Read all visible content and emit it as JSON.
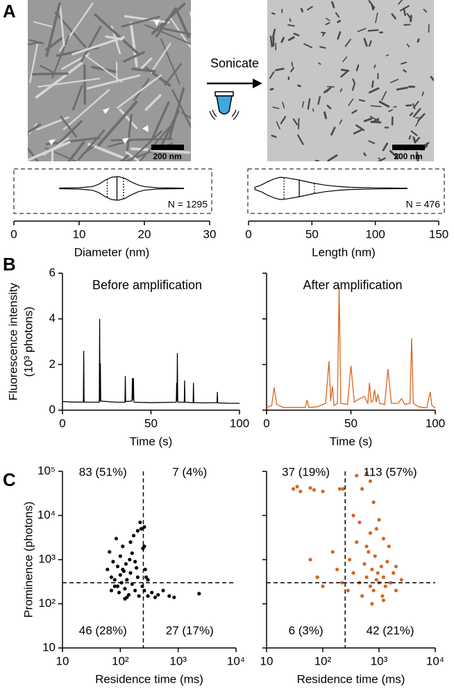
{
  "figure": {
    "panel_labels": [
      "A",
      "B",
      "C"
    ],
    "arrow_label": "Sonicate",
    "scale_bars": [
      "200 nm",
      "200 nm"
    ]
  },
  "chart_data": [
    {
      "type": "violin",
      "xlabel": "Diameter (nm)",
      "annotation": "N = 1295",
      "xlim": [
        0,
        30
      ],
      "xticks": [
        0,
        10,
        20,
        30
      ],
      "range": [
        7,
        26
      ],
      "quartiles": [
        14.3,
        15.8,
        16.8
      ],
      "density": {
        "x": [
          7,
          10,
          12,
          13,
          14,
          15,
          16,
          17,
          18,
          19,
          20,
          22,
          26
        ],
        "width": [
          0.03,
          0.06,
          0.15,
          0.35,
          0.7,
          0.95,
          1,
          0.85,
          0.55,
          0.3,
          0.15,
          0.05,
          0.02
        ]
      }
    },
    {
      "type": "violin",
      "xlabel": "Length (nm)",
      "annotation": "N = 476",
      "xlim": [
        0,
        150
      ],
      "xticks": [
        0,
        50,
        100,
        150
      ],
      "range": [
        5,
        125
      ],
      "quartiles": [
        28,
        40,
        52
      ],
      "density": {
        "x": [
          5,
          10,
          15,
          20,
          25,
          30,
          40,
          50,
          60,
          70,
          80,
          100,
          125
        ],
        "width": [
          0.1,
          0.3,
          0.6,
          0.85,
          1,
          0.95,
          0.75,
          0.5,
          0.3,
          0.18,
          0.1,
          0.05,
          0.02
        ]
      }
    },
    {
      "type": "line",
      "title": "Before amplification",
      "xlabel": "Time (s)",
      "ylabel": [
        "Fluorescence intensity",
        "(10³ photons)"
      ],
      "xlim": [
        0,
        100
      ],
      "xticks": [
        0,
        50,
        100
      ],
      "ylim": [
        0,
        6
      ],
      "yticks": [
        0,
        2,
        4,
        6
      ],
      "show_ytick_labels": true,
      "color": "#000000",
      "x": [
        0,
        5,
        11.8,
        12,
        12.2,
        20.8,
        21,
        21.2,
        21.4,
        21.6,
        30,
        35.3,
        35.5,
        35.7,
        39.3,
        39.5,
        39.7,
        40.1,
        40.3,
        40.5,
        50,
        64.3,
        64.5,
        64.7,
        64.9,
        65.1,
        65.3,
        68.8,
        69,
        69.2,
        73.8,
        74,
        74.2,
        80,
        87.3,
        87.5,
        87.7,
        95,
        100
      ],
      "values": [
        0.38,
        0.36,
        0.35,
        2.6,
        0.35,
        0.35,
        4.0,
        0.4,
        2.05,
        0.4,
        0.35,
        0.35,
        1.5,
        0.38,
        0.4,
        1.4,
        0.45,
        1.4,
        0.42,
        0.35,
        0.33,
        0.35,
        1.2,
        0.4,
        2.5,
        0.4,
        0.35,
        0.35,
        1.3,
        0.35,
        0.33,
        1.2,
        0.33,
        0.32,
        0.33,
        0.8,
        0.32,
        0.3,
        0.3
      ]
    },
    {
      "type": "line",
      "title": "After amplification",
      "xlabel": "Time (s)",
      "xlim": [
        0,
        100
      ],
      "xticks": [
        0,
        50,
        100
      ],
      "ylim": [
        0,
        6
      ],
      "yticks": [
        0,
        2,
        4,
        6
      ],
      "show_ytick_labels": false,
      "color": "#d9641e",
      "x": [
        0,
        3,
        4.5,
        6,
        10,
        23,
        24,
        25,
        30,
        35,
        37,
        38,
        39,
        40,
        42,
        43,
        44,
        48,
        50,
        52,
        55,
        58,
        60,
        61,
        62,
        63,
        64,
        65,
        66,
        67,
        70,
        72,
        74,
        78,
        80,
        82,
        85,
        86,
        87,
        90,
        95,
        97,
        98,
        100
      ],
      "values": [
        0.12,
        0.2,
        1.0,
        0.25,
        0.12,
        0.12,
        0.45,
        0.12,
        0.15,
        0.3,
        2.15,
        0.4,
        1.05,
        0.2,
        0.3,
        5.4,
        0.3,
        0.25,
        1.95,
        0.35,
        0.5,
        0.6,
        0.3,
        1.2,
        0.35,
        0.4,
        0.9,
        0.35,
        0.7,
        0.3,
        0.25,
        1.8,
        0.3,
        0.3,
        0.5,
        0.25,
        0.3,
        3.15,
        0.3,
        0.15,
        0.1,
        0.8,
        0.2,
        0.1
      ]
    },
    {
      "type": "scatter",
      "xlabel": "Residence time (ms)",
      "ylabel": "Prominence (photons)",
      "log_x": true,
      "log_y": true,
      "xlim": [
        10,
        10000
      ],
      "xticks": [
        10,
        {
          "value": 100,
          "label": "10²"
        },
        {
          "value": 1000,
          "label": "10³"
        },
        {
          "value": 10000,
          "label": "10⁴"
        }
      ],
      "ylim": [
        10,
        100000
      ],
      "yticks": [
        10,
        {
          "value": 100,
          "label": "10²"
        },
        {
          "value": 1000,
          "label": "10³"
        },
        {
          "value": 10000,
          "label": "10⁴"
        },
        {
          "value": 100000,
          "label": "10⁵"
        }
      ],
      "show_ytick_labels": true,
      "thresholds": {
        "x": 250,
        "y": 300
      },
      "color": "#000000",
      "quadrant_labels": {
        "top_left": "83 (51%)",
        "top_right": "7 (4%)",
        "bottom_left": "46 (28%)",
        "bottom_right": "27 (17%)"
      },
      "x": [
        60,
        65,
        70,
        75,
        80,
        85,
        90,
        95,
        100,
        100,
        105,
        110,
        115,
        120,
        125,
        130,
        140,
        145,
        150,
        160,
        170,
        180,
        190,
        200,
        210,
        220,
        230,
        240,
        245,
        120,
        90,
        70,
        180,
        260,
        300,
        350,
        400,
        450,
        550,
        700,
        850,
        2300,
        200,
        110,
        150,
        80,
        130,
        160,
        260,
        270,
        280,
        300,
        260
      ],
      "y": [
        600,
        1500,
        400,
        900,
        250,
        3000,
        700,
        180,
        450,
        1200,
        300,
        2000,
        550,
        220,
        800,
        350,
        160,
        1000,
        500,
        280,
        3500,
        200,
        650,
        400,
        150,
        7000,
        5000,
        250,
        1800,
        130,
        250,
        200,
        900,
        200,
        150,
        180,
        140,
        160,
        200,
        150,
        140,
        170,
        4500,
        600,
        2500,
        350,
        140,
        1400,
        2000,
        600,
        400,
        350,
        5500
      ]
    },
    {
      "type": "scatter",
      "xlabel": "Residence time (ms)",
      "log_x": true,
      "log_y": true,
      "xlim": [
        10,
        10000
      ],
      "xticks": [
        10,
        {
          "value": 100,
          "label": "10²"
        },
        {
          "value": 1000,
          "label": "10³"
        },
        {
          "value": 10000,
          "label": "10⁴"
        }
      ],
      "ylim": [
        10,
        100000
      ],
      "yticks": [
        10,
        100,
        1000,
        10000,
        100000
      ],
      "show_ytick_labels": false,
      "thresholds": {
        "x": 250,
        "y": 300
      },
      "color": "#d9641e",
      "quadrant_labels": {
        "top_left": "37 (19%)",
        "top_right": "113 (57%)",
        "bottom_left": "6 (3%)",
        "bottom_right": "42 (21%)"
      },
      "x": [
        30,
        35,
        40,
        60,
        70,
        100,
        200,
        230,
        400,
        600,
        700,
        500,
        800,
        350,
        450,
        900,
        1200,
        1500,
        2000,
        60,
        80,
        100,
        150,
        180,
        220,
        280,
        300,
        350,
        400,
        450,
        500,
        550,
        600,
        650,
        700,
        750,
        800,
        850,
        900,
        950,
        1000,
        1100,
        1150,
        1200,
        1300,
        1400,
        1600,
        1800,
        2000,
        2500,
        700,
        1000,
        600,
        750,
        1200
      ],
      "y": [
        40000,
        45000,
        35000,
        42000,
        38000,
        35000,
        40000,
        40000,
        80000,
        90000,
        60000,
        40000,
        20000,
        10000,
        7000,
        5000,
        3000,
        2000,
        700,
        1000,
        400,
        250,
        1500,
        600,
        300,
        200,
        1000,
        500,
        2500,
        300,
        150,
        800,
        400,
        1500,
        250,
        600,
        200,
        1200,
        350,
        500,
        300,
        700,
        150,
        400,
        250,
        900,
        300,
        500,
        200,
        350,
        4000,
        8000,
        2000,
        100,
        120
      ]
    }
  ]
}
